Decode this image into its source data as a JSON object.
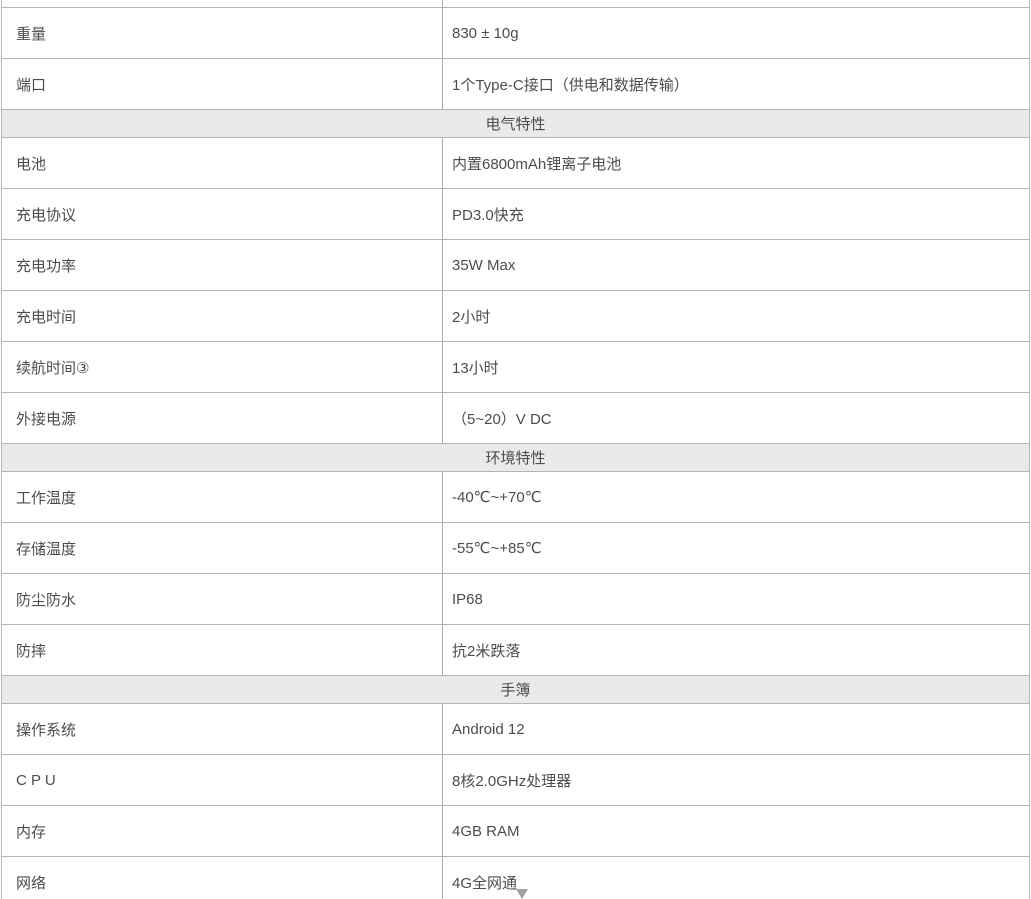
{
  "colors": {
    "section_header_bg": "#e9ebeb",
    "border_horizontal": "#b2b5b5",
    "border_vertical": "#a9acac",
    "text": "#4b4d4d"
  },
  "table": {
    "sections": [
      {
        "header": null,
        "rows": [
          {
            "label": "重量",
            "value": "830 ± 10g"
          },
          {
            "label": "端口",
            "value": "1个Type-C接口（供电和数据传输）"
          }
        ]
      },
      {
        "header": "电气特性",
        "rows": [
          {
            "label": "电池",
            "value": "内置6800mAh锂离子电池"
          },
          {
            "label": "充电协议",
            "value": "PD3.0快充"
          },
          {
            "label": "充电功率",
            "value": "35W Max"
          },
          {
            "label": "充电时间",
            "value": "2小时"
          },
          {
            "label": "续航时间③",
            "value": "13小时"
          },
          {
            "label": "外接电源",
            "value": "（5~20）V DC"
          }
        ]
      },
      {
        "header": "环境特性",
        "rows": [
          {
            "label": "工作温度",
            "value": "-40℃~+70℃"
          },
          {
            "label": "存储温度",
            "value": "-55℃~+85℃"
          },
          {
            "label": "防尘防水",
            "value": "IP68"
          },
          {
            "label": "防摔",
            "value": "抗2米跌落"
          }
        ]
      },
      {
        "header": "手簿",
        "rows": [
          {
            "label": "操作系统",
            "value": "Android 12"
          },
          {
            "label": "C P U",
            "value": "8核2.0GHz处理器"
          },
          {
            "label": "内存",
            "value": "4GB RAM"
          },
          {
            "label": "网络",
            "value": "4G全网通"
          }
        ]
      }
    ]
  }
}
